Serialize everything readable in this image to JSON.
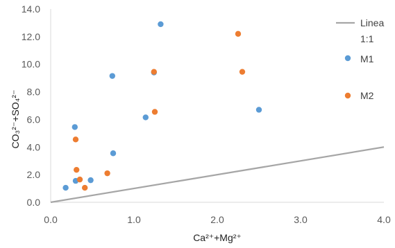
{
  "chart_data": {
    "type": "scatter",
    "xlabel": "Ca²⁺+Mg²⁺",
    "ylabel": "CO₃²⁻+SO₄²⁻",
    "xlim": [
      0,
      4
    ],
    "ylim": [
      0,
      14
    ],
    "x_ticks": [
      "0.0",
      "1.0",
      "2.0",
      "3.0",
      "4.0"
    ],
    "y_ticks": [
      "0.0",
      "2.0",
      "4.0",
      "6.0",
      "8.0",
      "10.0",
      "12.0",
      "14.0"
    ],
    "grid": false,
    "legend_position": "right",
    "series": [
      {
        "name": "M1",
        "color": "#5b9bd5",
        "points": [
          {
            "x": 0.18,
            "y": 1.05
          },
          {
            "x": 0.3,
            "y": 1.55
          },
          {
            "x": 0.29,
            "y": 5.45
          },
          {
            "x": 0.48,
            "y": 1.6
          },
          {
            "x": 0.75,
            "y": 3.55
          },
          {
            "x": 0.74,
            "y": 9.15
          },
          {
            "x": 1.14,
            "y": 6.15
          },
          {
            "x": 1.24,
            "y": 9.4
          },
          {
            "x": 1.32,
            "y": 12.9
          },
          {
            "x": 2.5,
            "y": 6.7
          }
        ]
      },
      {
        "name": "M2",
        "color": "#ed7d31",
        "points": [
          {
            "x": 0.3,
            "y": 4.55
          },
          {
            "x": 0.31,
            "y": 2.35
          },
          {
            "x": 0.35,
            "y": 1.65
          },
          {
            "x": 0.41,
            "y": 1.05
          },
          {
            "x": 0.68,
            "y": 2.1
          },
          {
            "x": 1.24,
            "y": 9.45
          },
          {
            "x": 1.25,
            "y": 6.55
          },
          {
            "x": 2.25,
            "y": 12.2
          },
          {
            "x": 2.3,
            "y": 9.45
          }
        ]
      }
    ],
    "reference_line": {
      "name": "Linea 1:1",
      "color": "#a6a6a6",
      "x": [
        0,
        4
      ],
      "y": [
        0,
        4
      ]
    },
    "legend": [
      {
        "label": "Linea 1:1",
        "kind": "line",
        "color": "#a6a6a6"
      },
      {
        "label": "M1",
        "kind": "marker",
        "color": "#5b9bd5"
      },
      {
        "label": "M2",
        "kind": "marker",
        "color": "#ed7d31"
      }
    ]
  }
}
